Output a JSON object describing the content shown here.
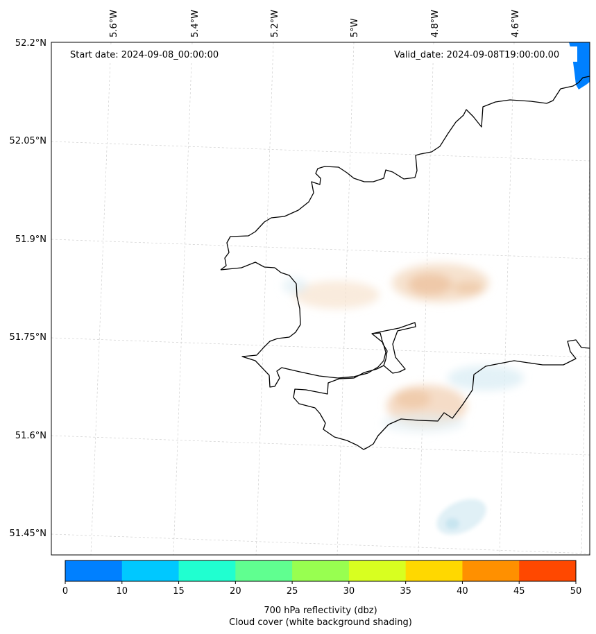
{
  "map": {
    "start_label": "Start date: 2024-09-08_00:00:00",
    "valid_label": "Valid_date: 2024-09-08T19:00:00.00",
    "lon_labels": [
      "5.6°W",
      "5.4°W",
      "5.2°W",
      "5°W",
      "4.8°W",
      "4.6°W"
    ],
    "lat_labels": [
      "52.2°N",
      "52.05°N",
      "51.9°N",
      "51.75°N",
      "51.6°N",
      "51.45°N"
    ],
    "gridlines": true,
    "coastline_color": "#000000"
  },
  "colorbar": {
    "label_line1": "700 hPa reflectivity (dbz)",
    "label_line2": "Cloud cover (white background shading)",
    "ticks": [
      "0",
      "10",
      "15",
      "20",
      "25",
      "30",
      "35",
      "40",
      "45",
      "50"
    ],
    "bins": [
      {
        "from": 0,
        "to": 10,
        "color": "#0080ff"
      },
      {
        "from": 10,
        "to": 15,
        "color": "#00c8ff"
      },
      {
        "from": 15,
        "to": 20,
        "color": "#20ffd0"
      },
      {
        "from": 20,
        "to": 25,
        "color": "#60ff90"
      },
      {
        "from": 25,
        "to": 30,
        "color": "#98ff50"
      },
      {
        "from": 30,
        "to": 35,
        "color": "#d8ff20"
      },
      {
        "from": 35,
        "to": 40,
        "color": "#ffd800"
      },
      {
        "from": 40,
        "to": 45,
        "color": "#ff9000"
      },
      {
        "from": 45,
        "to": 50,
        "color": "#ff4800"
      }
    ]
  }
}
